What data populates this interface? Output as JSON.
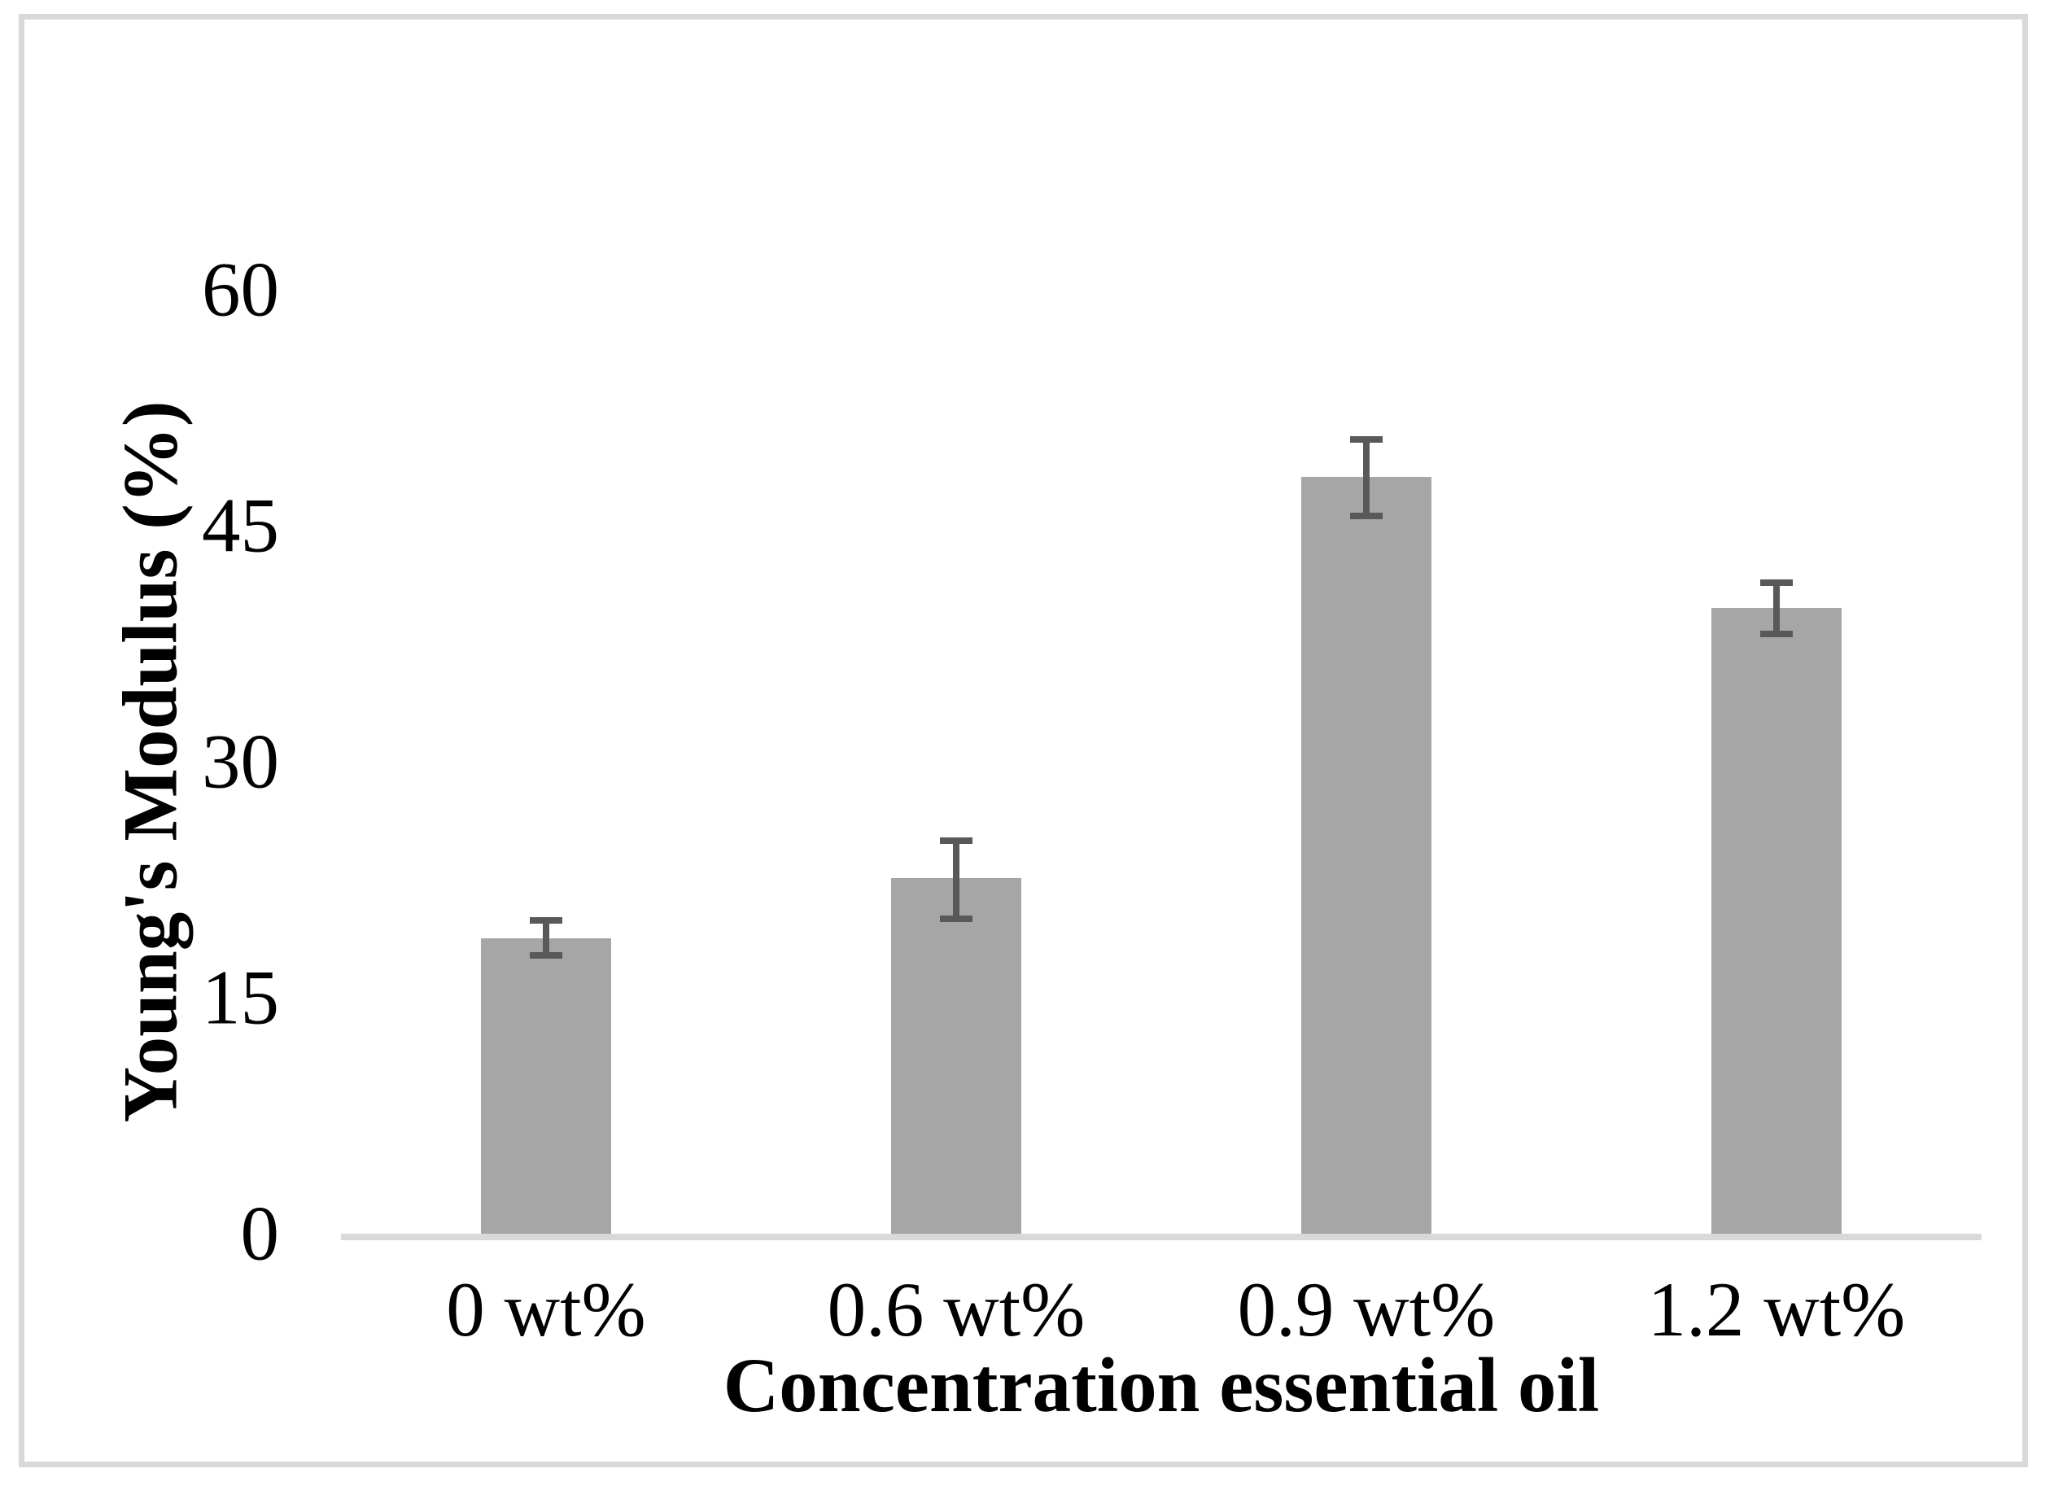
{
  "figure": {
    "background_color": "#FFFFFF",
    "border_color": "#D9D9D9"
  },
  "chart_data": {
    "type": "bar",
    "title": "",
    "categories": [
      "0 wt%",
      "0.6 wt%",
      "0.9 wt%",
      "1.2 wt%"
    ],
    "values": [
      18.8,
      22.6,
      48.1,
      39.8
    ],
    "error_plus": [
      1.3,
      2.6,
      2.6,
      1.8
    ],
    "error_minus": [
      1.3,
      2.8,
      2.7,
      1.9
    ],
    "xlabel": "Concentration essential oil",
    "ylabel": "Young's Modulus (%)",
    "ylim": [
      0,
      60
    ],
    "yticks": [
      0,
      15,
      30,
      45,
      60
    ],
    "grid": false,
    "legend": "none",
    "bar_color": "#A6A6A6",
    "error_bar_color": "#595959",
    "axis_line_color": "#D9D9D9",
    "plot_background": "#FFFFFF"
  }
}
